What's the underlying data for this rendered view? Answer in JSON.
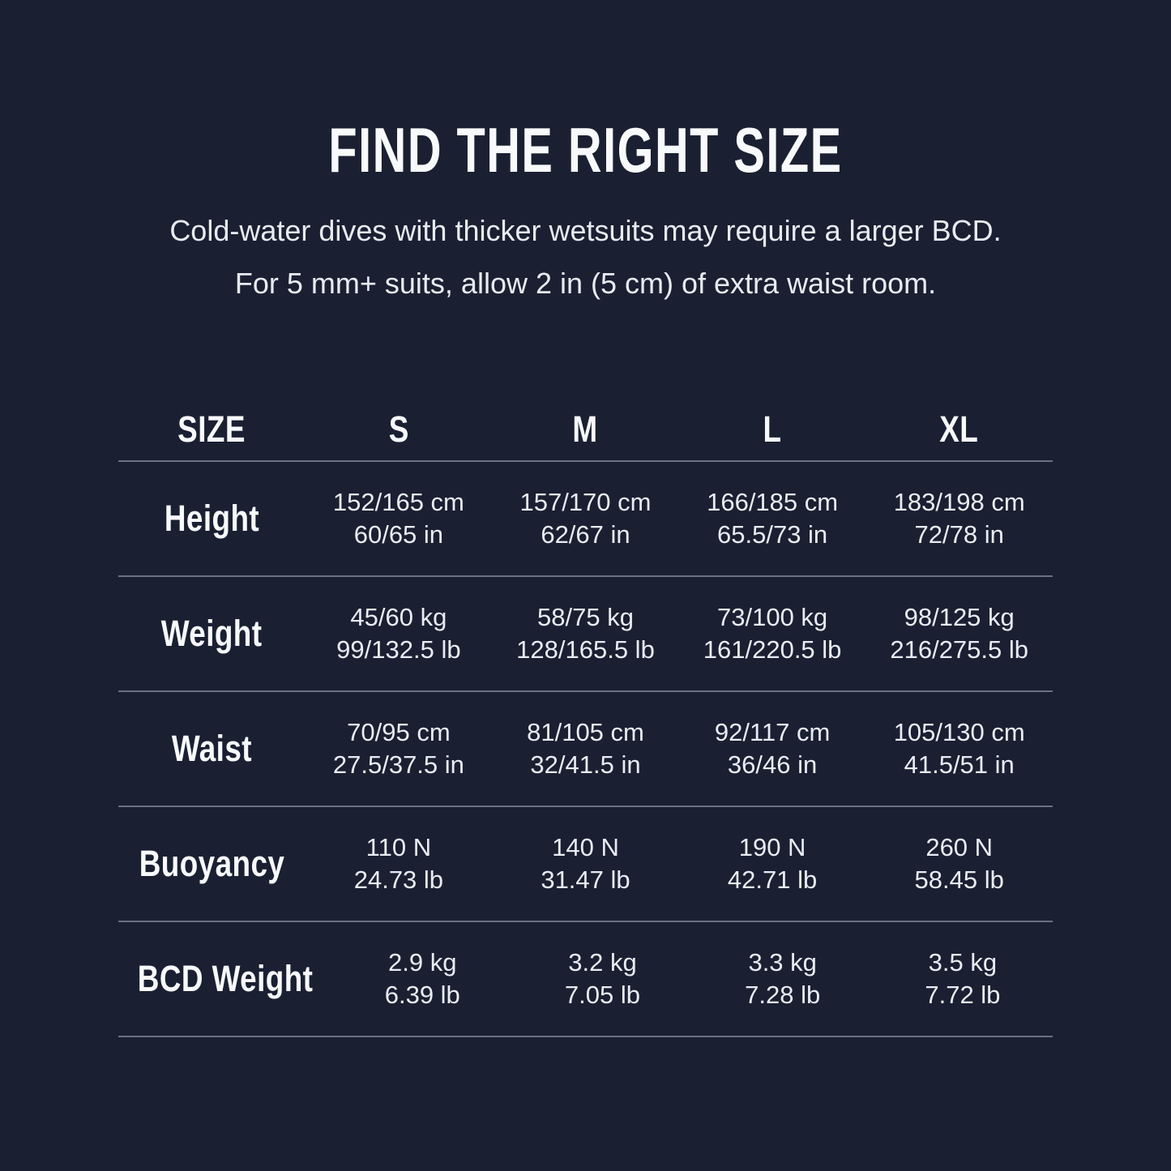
{
  "chart_data": {
    "type": "table",
    "title": "FIND THE RIGHT SIZE",
    "notes": [
      "Cold-water dives with thicker wetsuits may require a larger BCD.",
      "For 5 mm+ suits, allow 2 in (5 cm) of extra waist room."
    ],
    "columns": [
      "SIZE",
      "S",
      "M",
      "L",
      "XL"
    ],
    "rows": [
      {
        "label": "Height",
        "cells": [
          {
            "metric": "152/165 cm",
            "imperial": "60/65 in"
          },
          {
            "metric": "157/170 cm",
            "imperial": "62/67 in"
          },
          {
            "metric": "166/185 cm",
            "imperial": "65.5/73 in"
          },
          {
            "metric": "183/198 cm",
            "imperial": "72/78 in"
          }
        ]
      },
      {
        "label": "Weight",
        "cells": [
          {
            "metric": "45/60 kg",
            "imperial": "99/132.5 lb"
          },
          {
            "metric": "58/75 kg",
            "imperial": "128/165.5 lb"
          },
          {
            "metric": "73/100 kg",
            "imperial": "161/220.5 lb"
          },
          {
            "metric": "98/125 kg",
            "imperial": "216/275.5 lb"
          }
        ]
      },
      {
        "label": "Waist",
        "cells": [
          {
            "metric": "70/95 cm",
            "imperial": "27.5/37.5 in"
          },
          {
            "metric": "81/105 cm",
            "imperial": "32/41.5 in"
          },
          {
            "metric": "92/117 cm",
            "imperial": "36/46 in"
          },
          {
            "metric": "105/130 cm",
            "imperial": "41.5/51 in"
          }
        ]
      },
      {
        "label": "Buoyancy",
        "cells": [
          {
            "metric": "110 N",
            "imperial": "24.73 lb"
          },
          {
            "metric": "140 N",
            "imperial": "31.47 lb"
          },
          {
            "metric": "190 N",
            "imperial": "42.71 lb"
          },
          {
            "metric": "260 N",
            "imperial": "58.45 lb"
          }
        ]
      },
      {
        "label": "BCD Weight",
        "cells": [
          {
            "metric": "2.9 kg",
            "imperial": "6.39 lb"
          },
          {
            "metric": "3.2 kg",
            "imperial": "7.05 lb"
          },
          {
            "metric": "3.3 kg",
            "imperial": "7.28 lb"
          },
          {
            "metric": "3.5 kg",
            "imperial": "7.72 lb"
          }
        ]
      }
    ]
  },
  "colors": {
    "background": "#1a2032",
    "title_text": "#f8f9fb",
    "body_text": "#e9ecf2",
    "divider": "#6a7183"
  }
}
